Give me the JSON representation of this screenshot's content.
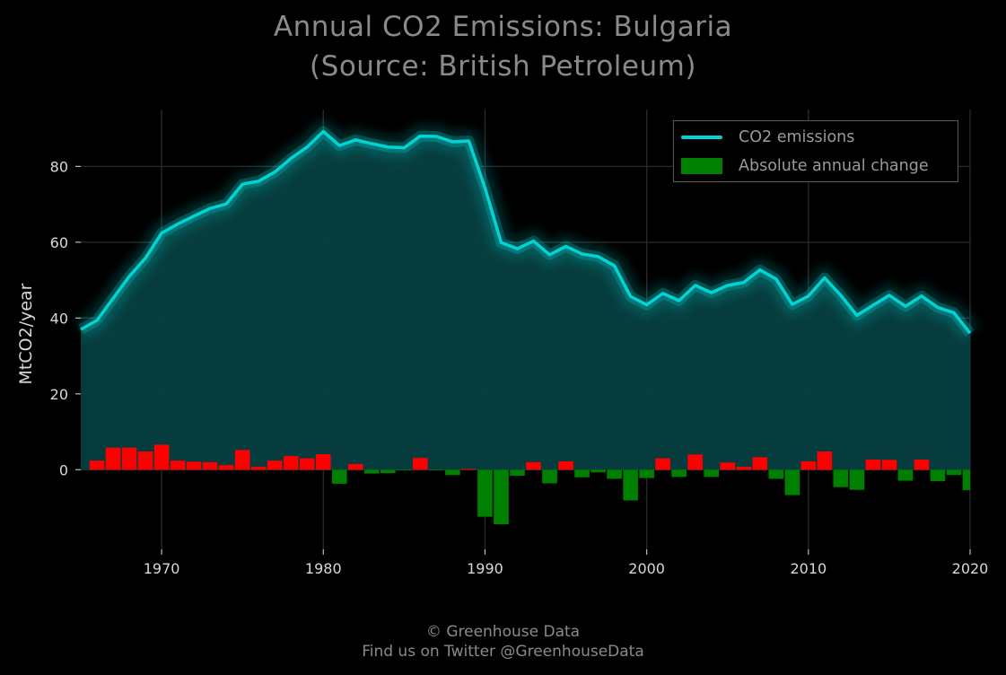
{
  "title": {
    "line1": "Annual CO2 Emissions: Bulgaria",
    "line2": "(Source: British Petroleum)"
  },
  "footer": {
    "line1": "© Greenhouse Data",
    "line2": "Find us on Twitter @GreenhouseData"
  },
  "legend": {
    "position": "top-right",
    "items": [
      {
        "label": "CO2 emissions",
        "color": "#00d4d4",
        "kind": "line"
      },
      {
        "label": "Absolute annual change",
        "color": "#008000",
        "kind": "bar"
      }
    ]
  },
  "colors": {
    "background": "#000000",
    "line": "#00d4d4",
    "area_fill": "#063f40",
    "increase_bar": "#ff0000",
    "decrease_bar": "#008000",
    "grid": "#2b2b2b",
    "tick_text": "#d8d8d8",
    "title_text": "#8a8a8a"
  },
  "chart_data": {
    "type": "line",
    "title": "Annual CO2 Emissions: Bulgaria\n(Source: British Petroleum)",
    "xlabel": "",
    "ylabel": "MtCO2/year",
    "xlim": [
      1965,
      2020
    ],
    "ylim": [
      -21,
      95
    ],
    "grid": true,
    "x_ticks": [
      1970,
      1980,
      1990,
      2000,
      2010,
      2020
    ],
    "y_ticks": [
      0,
      20,
      40,
      60,
      80
    ],
    "x": [
      1965,
      1966,
      1967,
      1968,
      1969,
      1970,
      1971,
      1972,
      1973,
      1974,
      1975,
      1976,
      1977,
      1978,
      1979,
      1980,
      1981,
      1982,
      1983,
      1984,
      1985,
      1986,
      1987,
      1988,
      1989,
      1990,
      1991,
      1992,
      1993,
      1994,
      1995,
      1996,
      1997,
      1998,
      1999,
      2000,
      2001,
      2002,
      2003,
      2004,
      2005,
      2006,
      2007,
      2008,
      2009,
      2010,
      2011,
      2012,
      2013,
      2014,
      2015,
      2016,
      2017,
      2018,
      2019,
      2020
    ],
    "series": [
      {
        "name": "CO2 emissions",
        "type": "area-line",
        "values": [
          37.0,
          39.4,
          45.2,
          51.0,
          55.8,
          62.4,
          64.8,
          66.9,
          68.9,
          70.1,
          75.3,
          76.1,
          78.5,
          82.1,
          85.1,
          89.2,
          85.5,
          87.0,
          86.0,
          85.1,
          84.9,
          88.0,
          87.9,
          86.5,
          86.7,
          74.3,
          59.9,
          58.3,
          60.3,
          56.7,
          58.9,
          56.9,
          56.2,
          53.8,
          45.7,
          43.5,
          46.5,
          44.6,
          48.6,
          46.7,
          48.6,
          49.4,
          52.7,
          50.3,
          43.6,
          45.8,
          50.6,
          46.0,
          40.7,
          43.4,
          46.0,
          43.1,
          45.8,
          42.8,
          41.4,
          36.0
        ]
      },
      {
        "name": "Absolute annual change",
        "type": "bar",
        "values": [
          null,
          2.4,
          5.8,
          5.8,
          4.8,
          6.6,
          2.4,
          2.1,
          2.0,
          1.2,
          5.2,
          0.8,
          2.4,
          3.6,
          3.0,
          4.1,
          -3.7,
          1.5,
          -1.0,
          -0.9,
          -0.2,
          3.1,
          -0.1,
          -1.4,
          0.2,
          -12.4,
          -14.4,
          -1.6,
          2.0,
          -3.6,
          2.2,
          -2.0,
          -0.7,
          -2.4,
          -8.1,
          -2.2,
          3.0,
          -1.9,
          4.0,
          -1.9,
          1.9,
          0.8,
          3.3,
          -2.4,
          -6.7,
          2.2,
          4.8,
          -4.6,
          -5.3,
          2.7,
          2.6,
          -2.9,
          2.7,
          -3.0,
          -1.4,
          -5.4
        ]
      }
    ]
  }
}
